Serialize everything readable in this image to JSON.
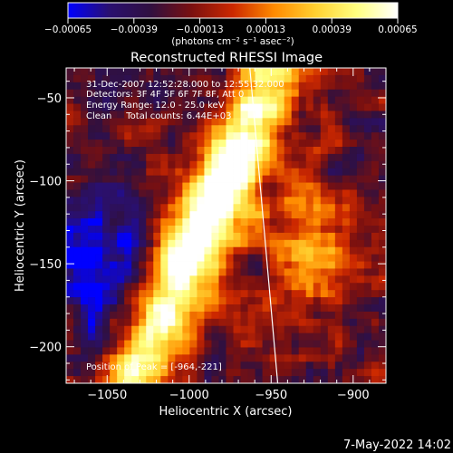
{
  "chart_data": {
    "type": "heatmap",
    "title": "Reconstructed RHESSI Image",
    "xlabel": "Heliocentric X (arcsec)",
    "ylabel": "Heliocentric Y (arcsec)",
    "xlim": [
      -1075,
      -880
    ],
    "ylim": [
      -222,
      -32
    ],
    "x_ticks": [
      -1050,
      -1000,
      -950,
      -900
    ],
    "x_tick_labels": [
      "−1050",
      "−1000",
      "−950",
      "−900"
    ],
    "y_ticks": [
      -200,
      -150,
      -100,
      -50
    ],
    "y_tick_labels": [
      "−200",
      "−150",
      "−100",
      "−50"
    ],
    "colorbar": {
      "range": [
        -0.00065,
        0.00065
      ],
      "ticks": [
        -0.00065,
        -0.00039,
        -0.00013,
        0.00013,
        0.00039,
        0.00065
      ],
      "tick_labels": [
        "−0.00065",
        "−0.00039",
        "−0.00013",
        "0.00013",
        "0.00039",
        "0.00065"
      ],
      "units_label": "(photons cm⁻² s⁻¹ asec⁻²)",
      "stops": [
        "#0000ff",
        "#2a1070",
        "#301040",
        "#7a1010",
        "#cc2800",
        "#ff8a00",
        "#ffd030",
        "#ffff80",
        "#ffffff"
      ]
    },
    "annotations": [
      "31-Dec-2007 12:52:28.000 to 12:55:32.000",
      "Detectors: 3F 4F 5F 6F 7F 8F, Att 0",
      "Energy Range: 12.0 - 25.0 keV",
      "Clean     Total counts: 6.44E+03",
      "Position of Peak = [-964,-221]"
    ],
    "limb_line": [
      [
        -963,
        -32
      ],
      [
        -946,
        -222
      ]
    ],
    "peak": [
      -964,
      -221
    ]
  },
  "footer": {
    "timestamp": "7-May-2022 14:02"
  }
}
